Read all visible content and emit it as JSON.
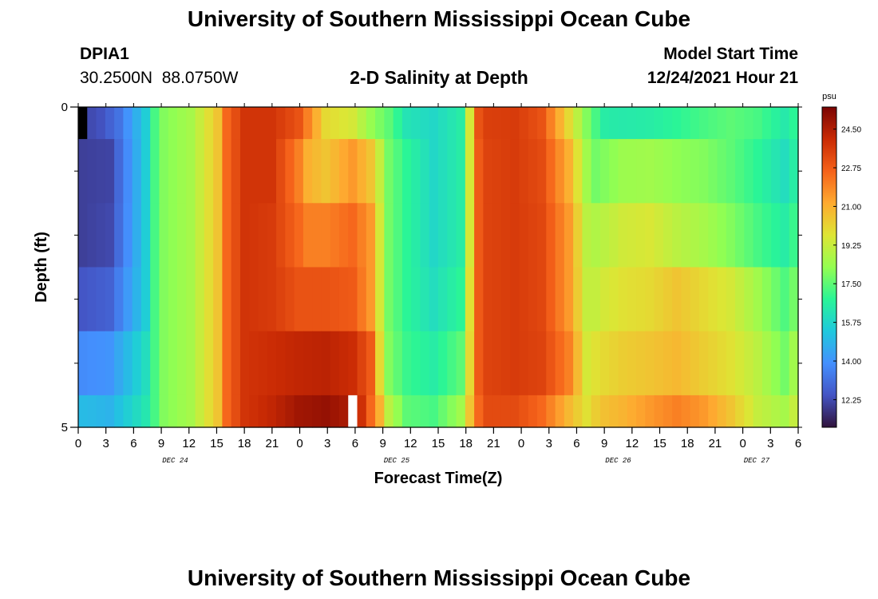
{
  "header": {
    "title": "University of Southern Mississippi Ocean Cube",
    "station_id": "DPIA1",
    "coords": "30.2500N  88.0750W",
    "chart_title": "2-D Salinity at Depth",
    "model_start_label": "Model Start Time",
    "model_start_value": "12/24/2021 Hour 21"
  },
  "footer": {
    "title": "University of Southern Mississippi Ocean Cube"
  },
  "chart_data": {
    "type": "heatmap",
    "title": "2-D Salinity at Depth",
    "xlabel": "Forecast Time(Z)",
    "ylabel": "Depth (ft)",
    "y_ticks": [
      "0",
      "5"
    ],
    "ylim": [
      0,
      5
    ],
    "y_inverted": true,
    "x_tick_labels": [
      "0",
      "3",
      "6",
      "9",
      "12",
      "15",
      "18",
      "21",
      "0",
      "3",
      "6",
      "9",
      "12",
      "15",
      "18",
      "21",
      "0",
      "3",
      "6",
      "9",
      "12",
      "15",
      "18",
      "21",
      "0",
      "3",
      "6"
    ],
    "date_labels": [
      {
        "text": "DEC 24",
        "at_tick": 3.5
      },
      {
        "text": "DEC 25",
        "at_tick": 11.5
      },
      {
        "text": "DEC 26",
        "at_tick": 19.5
      },
      {
        "text": "DEC 27",
        "at_tick": 24.5
      }
    ],
    "colorbar": {
      "unit": "psu",
      "tick_labels": [
        "24.50",
        "22.75",
        "21.00",
        "19.25",
        "17.50",
        "15.75",
        "14.00",
        "12.25"
      ],
      "ticks": [
        24.5,
        22.75,
        21.0,
        19.25,
        17.5,
        15.75,
        14.0,
        12.25
      ],
      "range": [
        11.0,
        25.5
      ],
      "colors": [
        "#30123b",
        "#4454c4",
        "#4490fe",
        "#1fc9dd",
        "#2af597",
        "#94fe51",
        "#dee534",
        "#feaa30",
        "#f5621a",
        "#c92a04",
        "#7a0403"
      ]
    },
    "grid": false,
    "rows": [
      {
        "depth_label": "0.0-0.5",
        "x": [
          0,
          2,
          4,
          7,
          8,
          9,
          12,
          15,
          16,
          18,
          21,
          24,
          27,
          30,
          32,
          34,
          36,
          39,
          42,
          43,
          44,
          45,
          48,
          51,
          54,
          56,
          57,
          58,
          60,
          63,
          66,
          69,
          72,
          75,
          78,
          79
        ],
        "v": [
          12.1,
          12.4,
          13.2,
          15.5,
          17.2,
          18.0,
          18.6,
          20.5,
          22.5,
          23.8,
          23.8,
          23.0,
          20.0,
          19.5,
          18.3,
          17.5,
          16.2,
          15.8,
          16.5,
          19.5,
          23.0,
          23.5,
          23.6,
          23.0,
          20.0,
          18.0,
          17.2,
          16.5,
          16.4,
          16.5,
          16.8,
          17.2,
          17.5,
          17.2,
          16.4,
          16.8
        ]
      },
      {
        "depth_label": "0.5-1.5",
        "x": [
          0,
          3,
          7,
          8,
          9,
          12,
          15,
          16,
          18,
          21,
          24,
          25,
          27,
          30,
          32,
          33,
          34,
          36,
          39,
          42,
          43,
          44,
          45,
          48,
          51,
          54,
          56,
          57,
          58,
          60,
          63,
          66,
          69,
          72,
          75,
          78,
          79
        ],
        "v": [
          12.0,
          12.1,
          15.5,
          17.2,
          18.0,
          18.6,
          20.5,
          22.5,
          23.8,
          23.8,
          22.0,
          21.0,
          20.5,
          21.5,
          20.5,
          19.2,
          17.8,
          16.8,
          15.8,
          16.5,
          19.5,
          22.8,
          23.4,
          23.6,
          23.2,
          21.0,
          18.5,
          17.8,
          18.0,
          18.4,
          18.5,
          18.2,
          18.0,
          17.5,
          16.8,
          16.0,
          16.5
        ]
      },
      {
        "depth_label": "1.5-2.5",
        "x": [
          0,
          3,
          7,
          8,
          9,
          12,
          15,
          16,
          18,
          21,
          24,
          25,
          27,
          30,
          32,
          33,
          34,
          36,
          39,
          42,
          43,
          44,
          45,
          48,
          51,
          54,
          56,
          57,
          58,
          60,
          63,
          66,
          69,
          72,
          75,
          78,
          79
        ],
        "v": [
          12.0,
          12.2,
          15.5,
          17.2,
          18.0,
          18.6,
          20.5,
          22.5,
          23.8,
          23.6,
          22.5,
          22.0,
          22.0,
          22.5,
          21.5,
          19.5,
          17.8,
          16.8,
          15.8,
          16.5,
          19.5,
          22.8,
          23.4,
          23.6,
          23.3,
          21.5,
          19.0,
          18.8,
          19.0,
          19.4,
          19.6,
          19.0,
          18.6,
          18.0,
          17.2,
          16.5,
          17.0
        ]
      },
      {
        "depth_label": "2.5-3.5",
        "x": [
          0,
          3,
          7,
          8,
          9,
          12,
          15,
          16,
          18,
          21,
          24,
          27,
          30,
          32,
          33,
          34,
          36,
          39,
          42,
          43,
          44,
          45,
          48,
          51,
          54,
          56,
          57,
          58,
          60,
          63,
          66,
          69,
          72,
          75,
          78,
          79
        ],
        "v": [
          12.5,
          12.8,
          15.5,
          17.2,
          18.0,
          18.6,
          20.5,
          22.5,
          23.8,
          23.6,
          23.0,
          23.0,
          22.8,
          21.5,
          19.5,
          17.8,
          16.8,
          16.0,
          16.8,
          19.8,
          22.8,
          23.4,
          23.6,
          23.3,
          21.5,
          19.2,
          19.2,
          19.5,
          19.8,
          20.0,
          20.5,
          20.0,
          19.5,
          18.5,
          17.3,
          17.8
        ]
      },
      {
        "depth_label": "3.5-4.5",
        "x": [
          0,
          3,
          7,
          8,
          9,
          12,
          15,
          16,
          18,
          21,
          24,
          27,
          30,
          32,
          33,
          34,
          36,
          39,
          42,
          43,
          44,
          45,
          48,
          51,
          54,
          56,
          57,
          58,
          60,
          63,
          66,
          69,
          72,
          75,
          78,
          79
        ],
        "v": [
          13.8,
          14.0,
          16.0,
          17.2,
          18.0,
          18.6,
          20.5,
          22.5,
          23.8,
          24.0,
          24.2,
          24.3,
          24.0,
          22.8,
          20.0,
          18.0,
          17.0,
          16.5,
          17.5,
          20.0,
          22.8,
          23.4,
          23.6,
          23.4,
          22.0,
          19.5,
          19.8,
          20.0,
          20.3,
          20.5,
          20.8,
          20.3,
          19.8,
          19.0,
          17.8,
          18.5
        ]
      },
      {
        "depth_label": "4.5-5.0",
        "x": [
          0,
          3,
          7,
          8,
          9,
          12,
          15,
          16,
          18,
          21,
          24,
          27,
          30,
          31,
          32,
          33,
          34,
          36,
          39,
          42,
          43,
          44,
          45,
          48,
          51,
          54,
          56,
          57,
          58,
          60,
          63,
          66,
          69,
          72,
          75,
          78,
          79
        ],
        "v": [
          15.0,
          14.8,
          16.3,
          17.2,
          18.0,
          18.6,
          20.5,
          22.5,
          23.8,
          24.2,
          24.8,
          25.0,
          24.5,
          23.9,
          22.5,
          21.0,
          19.0,
          17.5,
          17.2,
          18.5,
          20.5,
          22.5,
          23.2,
          23.2,
          22.5,
          20.8,
          19.8,
          20.3,
          20.6,
          20.9,
          21.5,
          22.0,
          21.5,
          20.5,
          19.2,
          18.6,
          19.2
        ]
      }
    ],
    "missing_cells": [
      {
        "row": 0,
        "x": 0,
        "color": "#000000"
      },
      {
        "row": 5,
        "x": 30,
        "color": "#ffffff"
      }
    ]
  }
}
